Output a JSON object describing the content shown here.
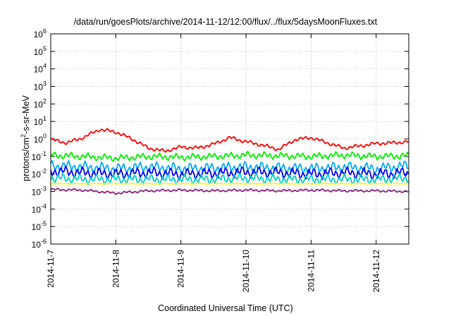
{
  "chart_data": {
    "type": "line",
    "title": "/data/run/goesPlots/archive/2014-11-12/12:00/flux/../flux/5daysMoonFluxes.txt",
    "xlabel": "Coordinated Universal Time (UTC)",
    "ylabel_base": "protons/cm",
    "ylabel_sup": "2",
    "ylabel_tail": "-s-sr-MeV",
    "yscale": "log",
    "ylim": [
      1e-06,
      1000000.0
    ],
    "xlim": [
      "2014-11-07",
      "2014-11-12 12:00"
    ],
    "grid": true,
    "y_ticks": [
      {
        "base": "10",
        "exp": "-6"
      },
      {
        "base": "10",
        "exp": "-5"
      },
      {
        "base": "10",
        "exp": "-4"
      },
      {
        "base": "10",
        "exp": "-3"
      },
      {
        "base": "10",
        "exp": "-2"
      },
      {
        "base": "10",
        "exp": "-1"
      },
      {
        "base": "10",
        "exp": "0"
      },
      {
        "base": "10",
        "exp": "1"
      },
      {
        "base": "10",
        "exp": "2"
      },
      {
        "base": "10",
        "exp": "3"
      },
      {
        "base": "10",
        "exp": "4"
      },
      {
        "base": "10",
        "exp": "5"
      },
      {
        "base": "10",
        "exp": "6"
      }
    ],
    "x_ticks": [
      "2014-11-7",
      "2014-11-8",
      "2014-11-9",
      "2014-11-10",
      "2014-11-11",
      "2014-11-12"
    ],
    "series": [
      {
        "color": "#ff0000",
        "x": [
          0,
          0.25,
          0.5,
          0.75,
          1,
          1.25,
          1.5,
          1.75,
          2,
          2.25,
          2.5,
          2.75,
          3,
          3.25,
          3.5,
          3.75,
          4,
          4.25,
          4.5,
          4.75,
          5,
          5.25,
          5.5
        ],
        "values": [
          0.9,
          0.6,
          1.2,
          3.5,
          2.5,
          1.0,
          0.3,
          0.2,
          0.35,
          0.3,
          0.5,
          1.2,
          0.7,
          0.45,
          0.25,
          0.9,
          1.2,
          0.6,
          0.3,
          0.4,
          0.55,
          0.6,
          0.7
        ]
      },
      {
        "color": "#00ee00",
        "x": [
          0,
          0.5,
          1,
          1.5,
          2,
          2.5,
          3,
          3.5,
          4,
          4.5,
          5,
          5.5
        ],
        "values": [
          0.12,
          0.1,
          0.08,
          0.1,
          0.09,
          0.1,
          0.12,
          0.11,
          0.1,
          0.12,
          0.1,
          0.11
        ]
      },
      {
        "color": "#00aaff",
        "x": [
          0,
          0.5,
          1,
          1.5,
          2,
          2.5,
          3,
          3.5,
          4,
          4.5,
          5,
          5.5
        ],
        "values": [
          0.03,
          0.025,
          0.02,
          0.025,
          0.02,
          0.022,
          0.025,
          0.022,
          0.02,
          0.025,
          0.02,
          0.03
        ]
      },
      {
        "color": "#0000ff",
        "x": [
          0,
          0.5,
          1,
          1.5,
          2,
          2.5,
          3,
          3.5,
          4,
          4.5,
          5,
          5.5
        ],
        "values": [
          0.015,
          0.012,
          0.01,
          0.012,
          0.01,
          0.011,
          0.013,
          0.012,
          0.01,
          0.012,
          0.01,
          0.012
        ]
      },
      {
        "color": "#00cccc",
        "x": [
          0,
          0.5,
          1,
          1.5,
          2,
          2.5,
          3,
          3.5,
          4,
          4.5,
          5,
          5.5
        ],
        "values": [
          0.006,
          0.005,
          0.005,
          0.005,
          0.005,
          0.005,
          0.006,
          0.005,
          0.005,
          0.005,
          0.005,
          0.006
        ]
      },
      {
        "color": "#ffff00",
        "x": [
          0,
          5.5
        ],
        "values": [
          0.0028,
          0.0028
        ]
      },
      {
        "color": "#882277",
        "x": [
          0,
          0.5,
          1,
          1.5,
          2,
          2.5,
          3,
          3.5,
          4,
          4.5,
          5,
          5.5
        ],
        "values": [
          0.0013,
          0.0012,
          0.0008,
          0.0011,
          0.0012,
          0.0011,
          0.0012,
          0.0011,
          0.0012,
          0.0011,
          0.0011,
          0.001
        ]
      }
    ]
  }
}
